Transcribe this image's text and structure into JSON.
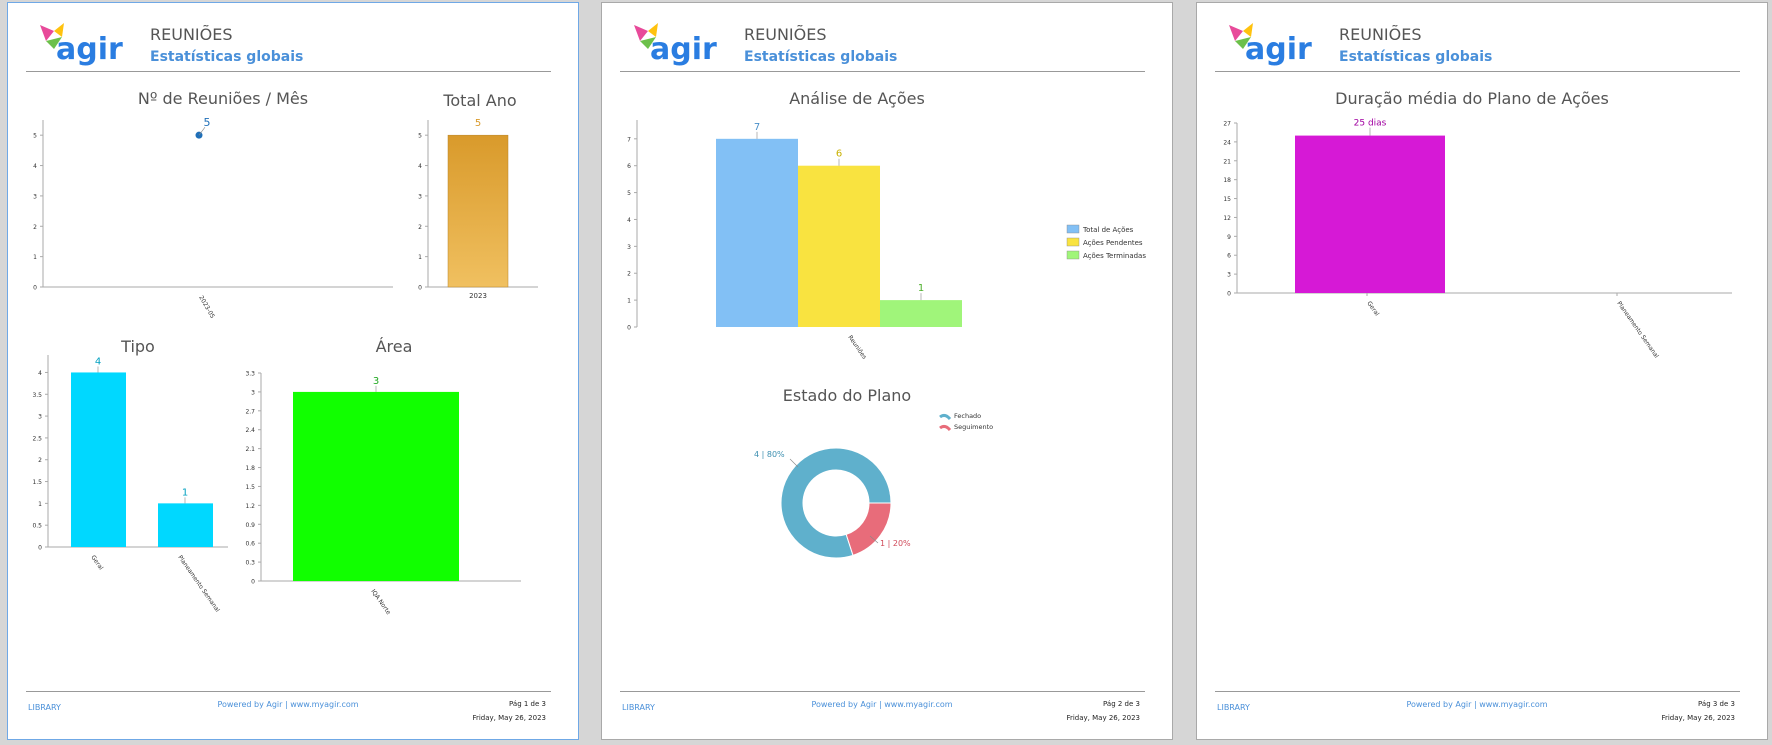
{
  "header": {
    "title": "REUNIÕES",
    "subtitle": "Estatísticas globais",
    "logo_text": "agir"
  },
  "footer": {
    "library": "LIBRARY",
    "powered": "Powered by  Agir  |  www.myagir.com",
    "date": "Friday, May 26, 2023"
  },
  "pages": [
    {
      "page_label": "Pág 1 de 3"
    },
    {
      "page_label": "Pág 2 de 3"
    },
    {
      "page_label": "Pág 3 de 3"
    }
  ],
  "colors": {
    "header_blue": "#4a90d9",
    "mes_point": "#1f6fb8",
    "ano_bar": "#d99a2b",
    "tipo_bar": "#00d8ff",
    "area_bar": "#11ff00",
    "acoes_total": "#82c0f5",
    "acoes_pendentes": "#f9e340",
    "acoes_terminadas": "#a0f57a",
    "plano_fechado": "#5fb0cc",
    "plano_seguimento": "#e86c7a",
    "duracao_bar": "#d619d6"
  },
  "chart_data": [
    {
      "id": "reunioes-mes",
      "type": "scatter",
      "title": "Nº de Reuniões / Mês",
      "categories": [
        "2023-05"
      ],
      "values": [
        5
      ],
      "ylim": [
        0,
        5.5
      ],
      "yticks": [
        "0",
        "1",
        "2",
        "3",
        "4",
        "5"
      ]
    },
    {
      "id": "total-ano",
      "type": "bar",
      "title": "Total Ano",
      "categories": [
        "2023"
      ],
      "values": [
        5
      ],
      "ylim": [
        0,
        5.5
      ],
      "yticks": [
        "0",
        "1",
        "2",
        "3",
        "4",
        "5"
      ]
    },
    {
      "id": "tipo",
      "type": "bar",
      "title": "Tipo",
      "categories": [
        "Geral",
        "Planeamento Semanal"
      ],
      "values": [
        4,
        1
      ],
      "ylim": [
        0,
        4.4
      ],
      "yticks": [
        "0",
        "0.5",
        "1",
        "1.5",
        "2",
        "2.5",
        "3",
        "3.5",
        "4"
      ]
    },
    {
      "id": "area",
      "type": "bar",
      "title": "Área",
      "categories": [
        "IQA Norte"
      ],
      "values": [
        3
      ],
      "ylim": [
        0,
        3.3
      ],
      "yticks": [
        "0",
        "0.3",
        "0.6",
        "0.9",
        "1.2",
        "1.5",
        "1.8",
        "2.1",
        "2.4",
        "2.7",
        "3",
        "3.3"
      ]
    },
    {
      "id": "analise-acoes",
      "type": "bar",
      "title": "Análise de Ações",
      "categories": [
        "Reuniões"
      ],
      "series": [
        {
          "name": "Total de Ações",
          "values": [
            7
          ]
        },
        {
          "name": "Ações Pendentes",
          "values": [
            6
          ]
        },
        {
          "name": "Ações Terminadas",
          "values": [
            1
          ]
        }
      ],
      "ylim": [
        0,
        7.7
      ],
      "yticks": [
        "0",
        "1",
        "2",
        "3",
        "4",
        "5",
        "6",
        "7"
      ],
      "legend": "right"
    },
    {
      "id": "estado-plano",
      "type": "pie",
      "title": "Estado do Plano",
      "categories": [
        "Fechado",
        "Seguimento"
      ],
      "values": [
        4,
        1
      ],
      "labels": [
        "4  |  80%",
        "1  |  20%"
      ],
      "legend": "top-right"
    },
    {
      "id": "duracao-media",
      "type": "bar",
      "title": "Duração média do Plano de Ações",
      "categories": [
        "Geral",
        "Planeamento Semanal"
      ],
      "values": [
        25,
        null
      ],
      "data_labels": [
        "25 dias"
      ],
      "ylim": [
        0,
        27
      ],
      "yticks": [
        "0",
        "3",
        "6",
        "9",
        "12",
        "15",
        "18",
        "21",
        "24",
        "27"
      ]
    }
  ]
}
